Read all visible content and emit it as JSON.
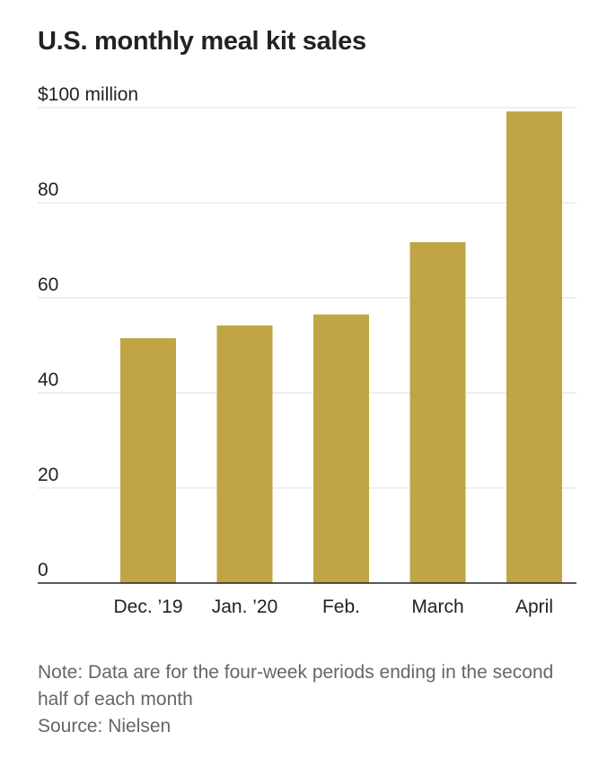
{
  "chart_data": {
    "type": "bar",
    "title": "U.S. monthly meal kit sales",
    "categories": [
      "Dec. ’19",
      "Jan. ’20",
      "Feb.",
      "March",
      "April"
    ],
    "values": [
      51.5,
      54.2,
      56.5,
      71.7,
      99.2
    ],
    "ylim": [
      0,
      100
    ],
    "yticks": [
      0,
      20,
      40,
      60,
      80,
      100
    ],
    "ytick_labels": [
      "0",
      "20",
      "40",
      "60",
      "80",
      "$100 million"
    ],
    "xlabel": "",
    "ylabel": "",
    "grid": true,
    "bar_color": "#c0a546",
    "grid_color": "#dddddd",
    "axis_color": "#222222"
  },
  "notes": {
    "note": "Note: Data are for the four-week periods ending in the second half of each month",
    "source": "Source: Nielsen"
  }
}
